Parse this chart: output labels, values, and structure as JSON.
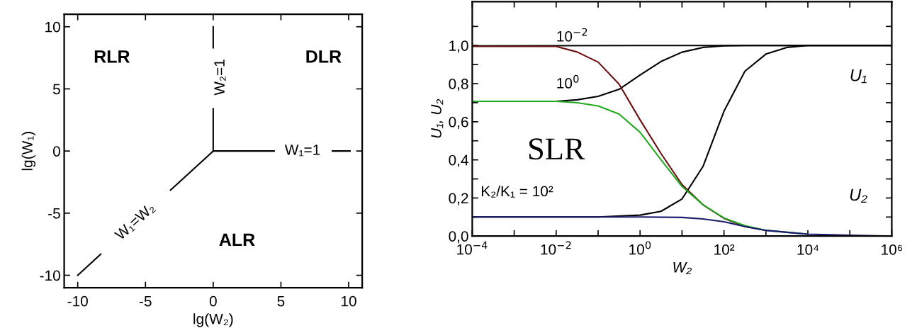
{
  "chart_data": [
    {
      "type": "line",
      "xlabel": "lg(W₂)",
      "ylabel": "lg(W₁)",
      "xlim": [
        -11,
        11
      ],
      "ylim": [
        -11,
        11
      ],
      "xticks": [
        -10,
        -5,
        0,
        5,
        10
      ],
      "yticks": [
        -10,
        -5,
        0,
        5,
        10
      ],
      "grid": false,
      "legend": false,
      "marker": "none",
      "line_style": "solid",
      "series": [
        {
          "color": "#000000",
          "x": [
            0,
            0
          ],
          "values": [
            0,
            3.4
          ]
        },
        {
          "color": "#000000",
          "x": [
            0,
            0
          ],
          "values": [
            8.3,
            10
          ]
        },
        {
          "color": "#000000",
          "x": [
            0,
            4.5
          ],
          "values": [
            0,
            0
          ]
        },
        {
          "color": "#000000",
          "x": [
            8.8,
            10.1
          ],
          "values": [
            0,
            0
          ]
        },
        {
          "color": "#000000",
          "x": [
            0,
            -3.15
          ],
          "values": [
            0,
            -3.15
          ]
        },
        {
          "color": "#000000",
          "x": [
            -8.3,
            -10
          ],
          "values": [
            -8.3,
            -10
          ]
        }
      ],
      "annotations": [
        "RLR",
        "DLR",
        "ALR",
        "W₂=1",
        "W₁=1",
        "W₁=W₂"
      ]
    },
    {
      "type": "line",
      "xlabel": "W₂",
      "ylabel": "U₁, U₂",
      "log": "x",
      "xlim": [
        0.0001,
        1000000
      ],
      "ylim": [
        0,
        1.23
      ],
      "xticks": [
        {
          "value": 0.0001,
          "label": "10$^{−4}$"
        },
        {
          "value": 0.001,
          "label": null
        },
        {
          "value": 0.01,
          "label": "10$^{−2}$"
        },
        {
          "value": 0.1,
          "label": null
        },
        {
          "value": 1,
          "label": "10$^{0}$"
        },
        {
          "value": 10,
          "label": null
        },
        {
          "value": 100,
          "label": "10²"
        },
        {
          "value": 1000,
          "label": null
        },
        {
          "value": 10000,
          "label": "10⁴"
        },
        {
          "value": 100000,
          "label": null
        },
        {
          "value": 1000000,
          "label": "10⁶"
        }
      ],
      "yticks": [
        {
          "value": 0,
          "label": "0,0"
        },
        {
          "value": 0.1,
          "label": null
        },
        {
          "value": 0.2,
          "label": "0,2"
        },
        {
          "value": 0.3,
          "label": null
        },
        {
          "value": 0.4,
          "label": "0,4"
        },
        {
          "value": 0.5,
          "label": null
        },
        {
          "value": 0.6,
          "label": "0,6"
        },
        {
          "value": 0.7,
          "label": null
        },
        {
          "value": 0.8,
          "label": "0,8"
        },
        {
          "value": 0.9,
          "label": null
        },
        {
          "value": 1.0,
          "label": "1,0"
        },
        {
          "value": 1.1,
          "label": null
        }
      ],
      "grid": false,
      "legend": false,
      "marker": "none",
      "line_style": "solid",
      "series": [
        {
          "name": "10$^{−2}$",
          "color": "#000000",
          "x": [
            0.0001,
            0.01,
            1,
            100,
            10000,
            1000000
          ],
          "values": [
            0.998,
            0.999,
            1.0,
            1.0,
            1.0,
            1.0
          ]
        },
        {
          "name": "10$^{0}$",
          "color": "#000000",
          "x": [
            0.0001,
            0.01,
            0.0316,
            0.1,
            0.316,
            1,
            3.16,
            10,
            31.6,
            100,
            316,
            1000000
          ],
          "values": [
            0.707,
            0.707,
            0.715,
            0.733,
            0.77,
            0.845,
            0.916,
            0.965,
            0.99,
            0.998,
            1.0,
            1.0
          ]
        },
        {
          "name": "K₂/K₁ = 10²",
          "color": "#000000",
          "x": [
            0.0001,
            0.1,
            1,
            3.16,
            10,
            31.6,
            100,
            316,
            1000,
            3160,
            10000,
            1000000
          ],
          "values": [
            0.1,
            0.1,
            0.11,
            0.13,
            0.195,
            0.365,
            0.655,
            0.865,
            0.955,
            0.99,
            1.0,
            1.0
          ]
        },
        {
          "color": "#6b1010",
          "x": [
            0.0001,
            0.01,
            0.0316,
            0.1,
            0.316,
            1,
            3.16,
            10,
            31.6,
            100,
            316,
            1000
          ],
          "values": [
            0.995,
            0.995,
            0.966,
            0.913,
            0.797,
            0.61,
            0.433,
            0.27,
            0.164,
            0.093,
            0.05,
            0.03
          ]
        },
        {
          "color": "#22aa22",
          "x": [
            0.0001,
            0.01,
            0.0316,
            0.1,
            0.316,
            1,
            3.16,
            10,
            31.6,
            100,
            316,
            1000,
            10000
          ],
          "values": [
            0.707,
            0.707,
            0.7,
            0.683,
            0.64,
            0.545,
            0.4,
            0.26,
            0.165,
            0.095,
            0.055,
            0.03,
            0.01
          ]
        },
        {
          "color": "#1a1a6e",
          "x": [
            0.0001,
            1,
            10,
            31.6,
            100,
            316,
            1000,
            3160,
            10000,
            100000,
            1000000
          ],
          "values": [
            0.1,
            0.1,
            0.098,
            0.09,
            0.075,
            0.05,
            0.03,
            0.02,
            0.01,
            0.004,
            0.0
          ]
        }
      ],
      "annotations": [
        "U₁",
        "U₂",
        "SLR"
      ]
    }
  ]
}
